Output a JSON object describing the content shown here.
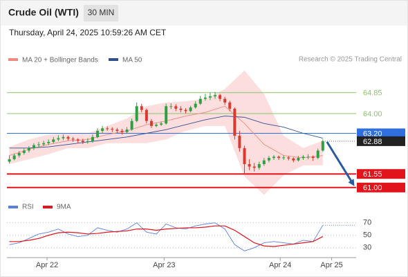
{
  "header": {
    "title": "Crude Oil (WTI)",
    "timeframe": "30 MIN",
    "timestamp": "Thursday, April 24, 2025 10:59:26 AM CET",
    "credit": "Research © 2025 Trading Central"
  },
  "chart_data": [
    {
      "type": "candlestick",
      "up_color": "#2ea043",
      "down_color": "#d93a2f",
      "xlim": [
        -0.5,
        70.8
      ],
      "ylim": [
        60.6,
        65.8
      ],
      "ohlc": [
        [
          62.05,
          62.3,
          61.98,
          62.15
        ],
        [
          62.15,
          62.38,
          62.1,
          62.3
        ],
        [
          62.3,
          62.48,
          62.22,
          62.4
        ],
        [
          62.4,
          62.58,
          62.33,
          62.5
        ],
        [
          62.5,
          62.68,
          62.42,
          62.6
        ],
        [
          62.6,
          62.8,
          62.52,
          62.72
        ],
        [
          62.72,
          62.85,
          62.62,
          62.75
        ],
        [
          62.75,
          62.9,
          62.68,
          62.8
        ],
        [
          62.8,
          62.95,
          62.72,
          62.85
        ],
        [
          62.85,
          63.05,
          62.78,
          62.95
        ],
        [
          62.95,
          63.12,
          62.88,
          63.0
        ],
        [
          63.0,
          63.15,
          62.92,
          63.05
        ],
        [
          63.05,
          63.1,
          62.9,
          62.98
        ],
        [
          62.98,
          63.05,
          62.85,
          62.95
        ],
        [
          62.95,
          63.0,
          62.8,
          62.9
        ],
        [
          62.9,
          62.98,
          62.76,
          62.85
        ],
        [
          62.85,
          63.0,
          62.78,
          62.88
        ],
        [
          62.88,
          63.15,
          62.82,
          63.05
        ],
        [
          63.05,
          63.4,
          63.0,
          63.3
        ],
        [
          63.3,
          63.5,
          63.22,
          63.4
        ],
        [
          63.4,
          63.48,
          63.3,
          63.38
        ],
        [
          63.38,
          63.45,
          63.25,
          63.35
        ],
        [
          63.35,
          63.42,
          63.22,
          63.3
        ],
        [
          63.3,
          63.38,
          63.15,
          63.25
        ],
        [
          63.25,
          63.45,
          63.2,
          63.35
        ],
        [
          63.35,
          63.8,
          63.3,
          63.7
        ],
        [
          63.7,
          64.45,
          63.65,
          64.3
        ],
        [
          64.3,
          64.4,
          64.05,
          64.15
        ],
        [
          64.15,
          64.2,
          63.6,
          63.7
        ],
        [
          63.7,
          63.78,
          63.42,
          63.5
        ],
        [
          63.5,
          63.62,
          63.45,
          63.55
        ],
        [
          63.55,
          63.68,
          63.5,
          63.6
        ],
        [
          63.6,
          64.4,
          63.55,
          64.3
        ],
        [
          64.3,
          64.42,
          64.18,
          64.3
        ],
        [
          64.3,
          64.38,
          64.1,
          64.2
        ],
        [
          64.2,
          64.3,
          64.05,
          64.15
        ],
        [
          64.15,
          64.22,
          64.0,
          64.1
        ],
        [
          64.1,
          64.32,
          64.05,
          64.25
        ],
        [
          64.25,
          64.5,
          64.2,
          64.4
        ],
        [
          64.4,
          64.72,
          64.35,
          64.6
        ],
        [
          64.6,
          64.8,
          64.52,
          64.65
        ],
        [
          64.65,
          64.85,
          64.55,
          64.7
        ],
        [
          64.7,
          64.88,
          64.6,
          64.75
        ],
        [
          64.75,
          64.8,
          64.5,
          64.6
        ],
        [
          64.6,
          64.68,
          64.35,
          64.45
        ],
        [
          64.45,
          64.52,
          64.1,
          64.2
        ],
        [
          64.2,
          64.25,
          62.95,
          63.1
        ],
        [
          63.1,
          63.3,
          62.45,
          62.6
        ],
        [
          62.6,
          62.7,
          61.55,
          61.95
        ],
        [
          61.95,
          62.15,
          61.7,
          61.85
        ],
        [
          61.85,
          62.0,
          61.65,
          61.8
        ],
        [
          61.8,
          62.05,
          61.72,
          61.95
        ],
        [
          61.95,
          62.2,
          61.88,
          62.1
        ],
        [
          62.1,
          62.28,
          62.02,
          62.2
        ],
        [
          62.2,
          62.32,
          62.12,
          62.25
        ],
        [
          62.25,
          62.3,
          62.12,
          62.2
        ],
        [
          62.2,
          62.3,
          62.12,
          62.22
        ],
        [
          62.22,
          62.28,
          62.1,
          62.18
        ],
        [
          62.18,
          62.22,
          62.02,
          62.1
        ],
        [
          62.1,
          62.28,
          62.05,
          62.2
        ],
        [
          62.2,
          62.32,
          62.12,
          62.25
        ],
        [
          62.25,
          62.35,
          62.15,
          62.25
        ],
        [
          62.25,
          62.3,
          62.08,
          62.2
        ],
        [
          62.2,
          62.58,
          62.15,
          62.5
        ],
        [
          62.5,
          62.95,
          62.45,
          62.88
        ]
      ],
      "series": [
        {
          "name": "MA 20 + Bollinger Bands",
          "color": "#f08a80",
          "band_color": "#fddede",
          "x": [
            0,
            4,
            8,
            12,
            16,
            20,
            24,
            28,
            32,
            36,
            40,
            44,
            48,
            52,
            56,
            60,
            64
          ],
          "values": [
            62.3,
            62.55,
            62.75,
            62.9,
            62.95,
            63.15,
            63.3,
            63.55,
            63.7,
            63.9,
            64.05,
            64.3,
            63.6,
            62.75,
            62.3,
            62.2,
            62.3
          ],
          "upper": [
            62.65,
            62.95,
            63.15,
            63.2,
            63.2,
            63.5,
            63.8,
            64.3,
            64.45,
            64.5,
            64.6,
            65.0,
            65.75,
            64.8,
            63.1,
            62.6,
            62.9
          ],
          "lower": [
            61.95,
            62.15,
            62.35,
            62.6,
            62.6,
            62.8,
            62.8,
            62.8,
            62.95,
            63.3,
            63.5,
            63.5,
            61.45,
            60.7,
            61.5,
            61.9,
            61.9
          ]
        },
        {
          "name": "MA 50",
          "color": "#2f4f8f",
          "x": [
            0,
            4,
            8,
            12,
            16,
            20,
            24,
            28,
            32,
            36,
            40,
            44,
            48,
            52,
            56,
            60,
            64
          ],
          "values": [
            62.6,
            62.6,
            62.65,
            62.75,
            62.85,
            62.95,
            63.05,
            63.2,
            63.35,
            63.55,
            63.75,
            63.9,
            63.85,
            63.6,
            63.45,
            63.2,
            63.0
          ]
        }
      ],
      "levels": [
        {
          "value": 64.85,
          "color": "#8cc46c"
        },
        {
          "value": 64,
          "label": "64.00",
          "color": "#8cc46c"
        },
        {
          "value": 63.2,
          "label": "63.20",
          "color": "#2f6fe0",
          "label_bg": "#2f6fe0"
        },
        {
          "value": 61.55,
          "color": "#e0141a",
          "label_bg": "#e0141a"
        },
        {
          "value": 61,
          "label": "61.00",
          "color": "#e0141a",
          "label_bg": "#e0141a"
        }
      ],
      "current": {
        "value": 62.88,
        "color": "#222222"
      },
      "forecast_color": "#2a5aa0"
    },
    {
      "type": "line",
      "xlim": [
        -0.5,
        70.8
      ],
      "ylim": [
        11,
        94
      ],
      "yticks": [
        30,
        50,
        70
      ],
      "xticks": [
        {
          "value": 7.7,
          "label": "Apr 22"
        },
        {
          "value": 31.6,
          "label": "Apr 23"
        },
        {
          "value": 55.3,
          "label": "Apr 24"
        },
        {
          "value": 65.8,
          "label": "Apr 25"
        }
      ],
      "series": [
        {
          "name": "RSI",
          "color": "#5b7fe0",
          "x": [
            0,
            2,
            4,
            6,
            8,
            10,
            12,
            14,
            16,
            18,
            20,
            22,
            24,
            26,
            28,
            30,
            32,
            34,
            36,
            38,
            40,
            42,
            44,
            46,
            48,
            50,
            52,
            54,
            56,
            58,
            60,
            62,
            64
          ],
          "values": [
            35,
            38,
            45,
            52,
            55,
            60,
            52,
            48,
            50,
            62,
            58,
            55,
            60,
            70,
            55,
            52,
            68,
            62,
            60,
            65,
            68,
            70,
            60,
            35,
            25,
            30,
            38,
            40,
            38,
            36,
            42,
            40,
            66
          ]
        },
        {
          "name": "9MA",
          "color": "#e0141a",
          "x": [
            0,
            2,
            4,
            6,
            8,
            10,
            12,
            14,
            16,
            18,
            20,
            22,
            24,
            26,
            28,
            30,
            32,
            34,
            36,
            38,
            40,
            42,
            44,
            46,
            48,
            50,
            52,
            54,
            56,
            58,
            60,
            62,
            64
          ],
          "values": [
            40,
            40,
            42,
            45,
            50,
            54,
            55,
            54,
            52,
            53,
            55,
            56,
            57,
            60,
            60,
            58,
            60,
            61,
            62,
            62,
            63,
            65,
            65,
            58,
            48,
            38,
            33,
            32,
            34,
            36,
            38,
            40,
            48
          ]
        }
      ]
    }
  ]
}
